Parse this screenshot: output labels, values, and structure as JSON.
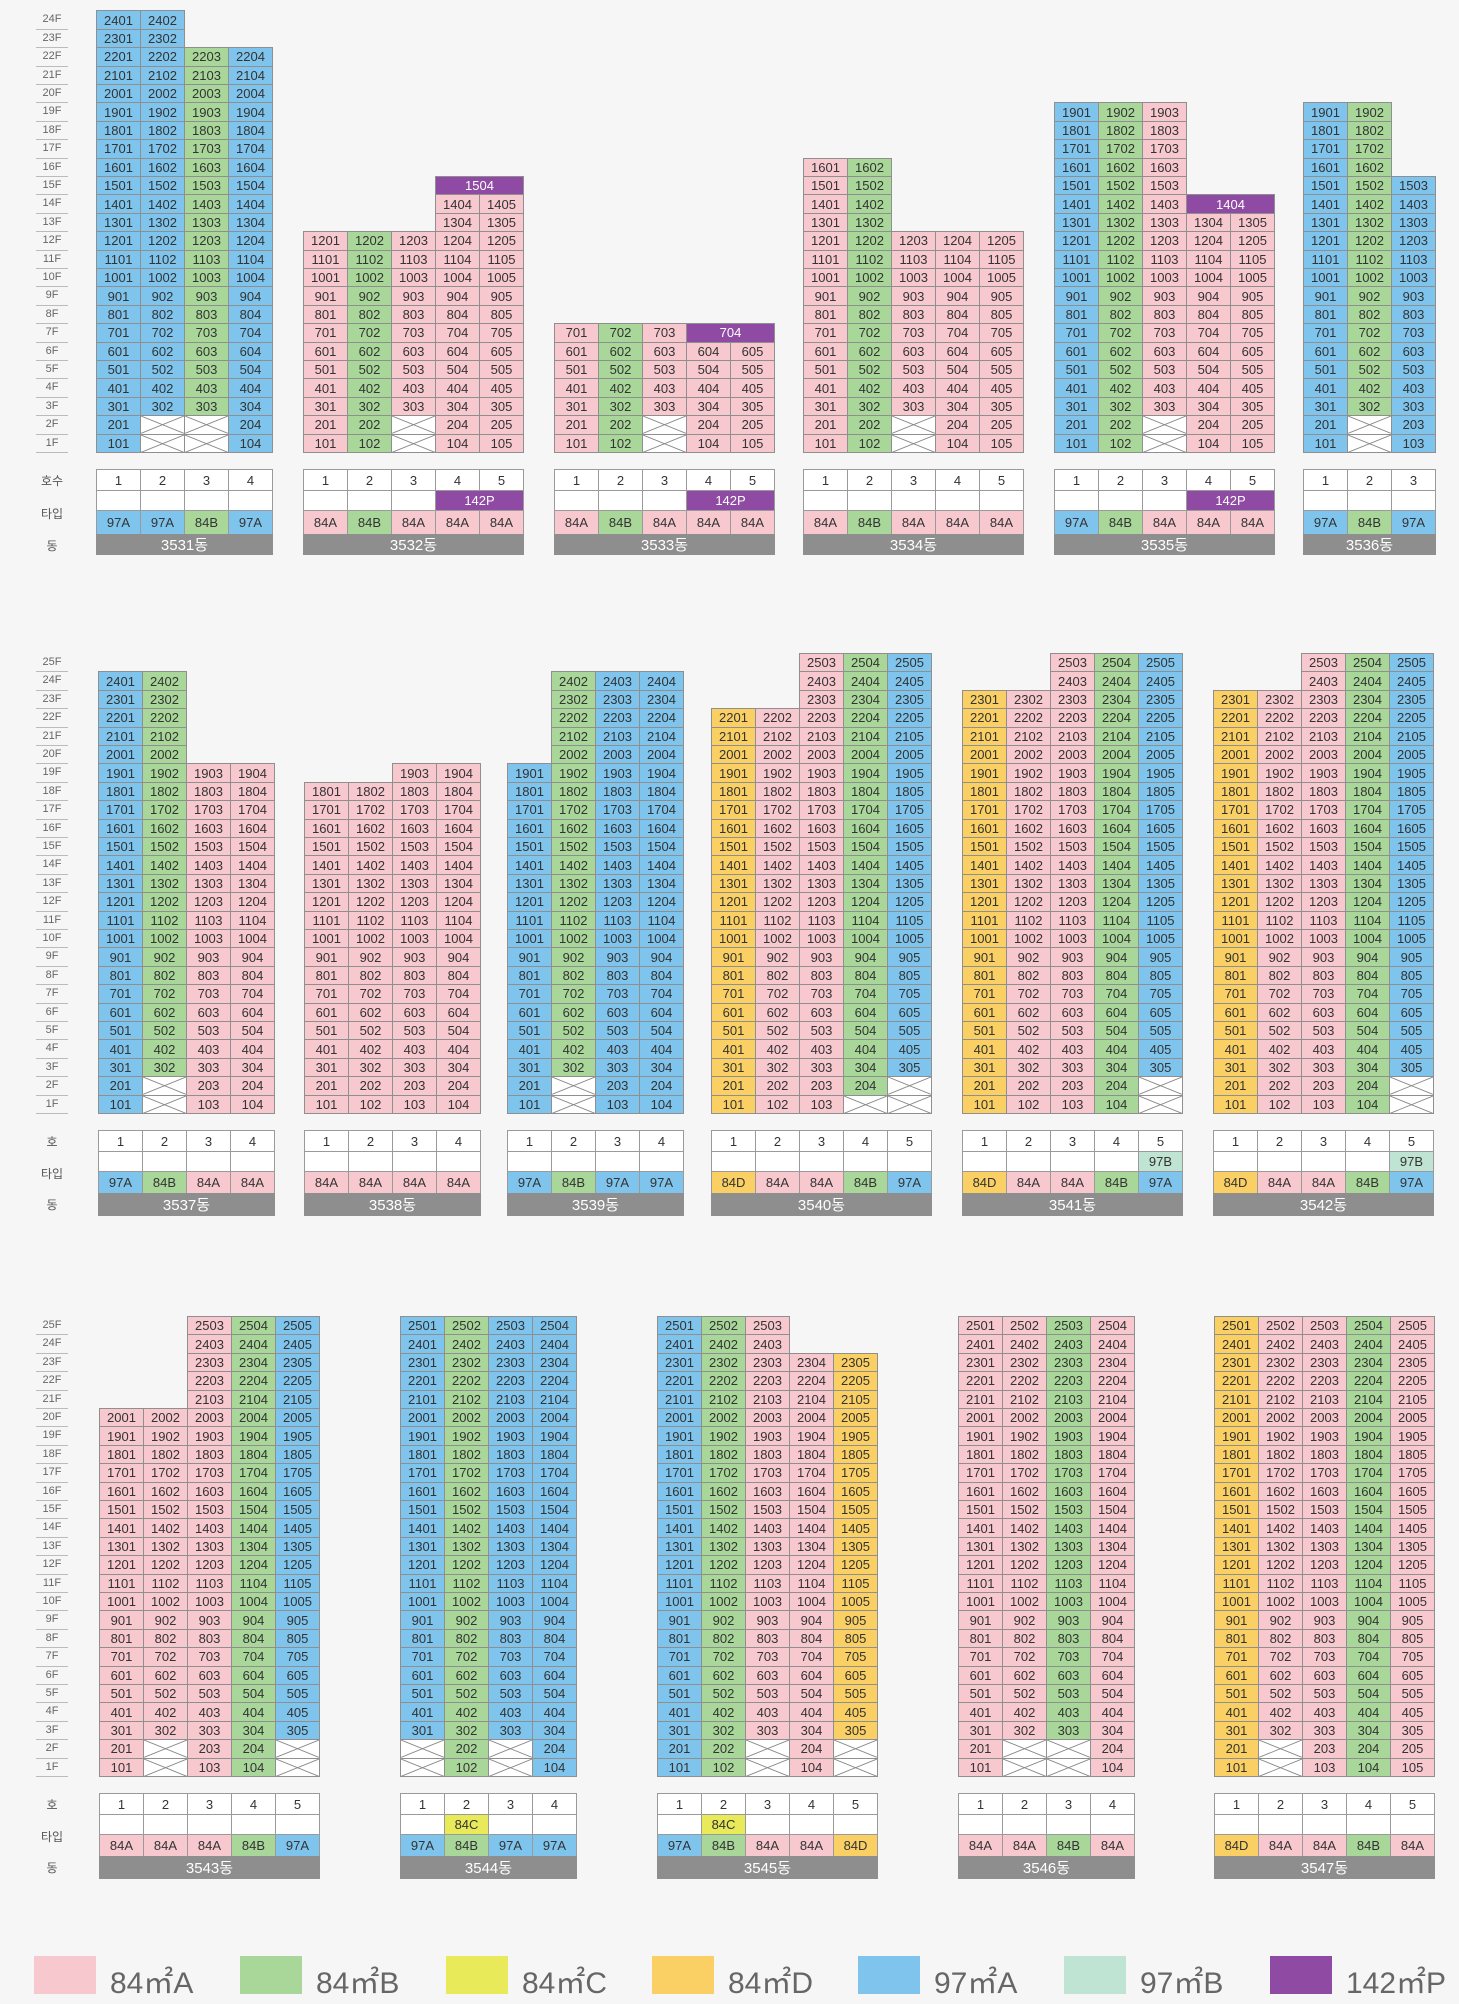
{
  "colors": {
    "84A": "#f8c8cf",
    "84B": "#a9d79a",
    "84C": "#e9ea5a",
    "84D": "#fad064",
    "97A": "#7fc4ec",
    "97B": "#bfe4d4",
    "142P": "#8f4aa3",
    "empty": "#ffffff"
  },
  "labels": {
    "unit_row_a": "호수",
    "unit_row_b": "호",
    "type_row": "타입",
    "dong_row": "동"
  },
  "legend": [
    {
      "key": "84A",
      "label": "84㎡A"
    },
    {
      "key": "84B",
      "label": "84㎡B"
    },
    {
      "key": "84C",
      "label": "84㎡C"
    },
    {
      "key": "84D",
      "label": "84㎡D"
    },
    {
      "key": "97A",
      "label": "97㎡A"
    },
    {
      "key": "97B",
      "label": "97㎡B"
    },
    {
      "key": "142P",
      "label": "142㎡P"
    }
  ],
  "buildings": [
    {
      "name": "3531동",
      "row": 0,
      "cols": [
        {
          "line": 1,
          "type": "97A",
          "top": 24,
          "empty": []
        },
        {
          "line": 2,
          "type": "97A",
          "top": 24,
          "empty": [
            1,
            2
          ]
        },
        {
          "line": 3,
          "type": "84B",
          "top": 22,
          "empty": [
            1,
            2
          ]
        },
        {
          "line": 4,
          "type": "97A",
          "top": 22,
          "empty": []
        }
      ],
      "penthouse": [],
      "extra_types": {}
    },
    {
      "name": "3532동",
      "row": 0,
      "cols": [
        {
          "line": 1,
          "type": "84A",
          "top": 12,
          "empty": []
        },
        {
          "line": 2,
          "type": "84B",
          "top": 12,
          "empty": []
        },
        {
          "line": 3,
          "type": "84A",
          "top": 12,
          "empty": [
            1,
            2
          ]
        },
        {
          "line": 4,
          "type": "84A",
          "top": 14,
          "empty": []
        },
        {
          "line": 5,
          "type": "84A",
          "top": 14,
          "empty": []
        }
      ],
      "penthouse": [
        {
          "label": "1504",
          "cols": [
            4,
            5
          ]
        }
      ],
      "extra_types": {
        "4": "142P",
        "5": "142P"
      }
    },
    {
      "name": "3533동",
      "row": 0,
      "cols": [
        {
          "line": 1,
          "type": "84A",
          "top": 7,
          "empty": []
        },
        {
          "line": 2,
          "type": "84B",
          "top": 7,
          "empty": []
        },
        {
          "line": 3,
          "type": "84A",
          "top": 7,
          "empty": [
            1,
            2
          ]
        },
        {
          "line": 4,
          "type": "84A",
          "top": 6,
          "empty": []
        },
        {
          "line": 5,
          "type": "84A",
          "top": 6,
          "empty": []
        }
      ],
      "penthouse": [
        {
          "label": "704",
          "cols": [
            4,
            5
          ]
        }
      ],
      "extra_types": {
        "4": "142P",
        "5": "142P"
      }
    },
    {
      "name": "3534동",
      "row": 0,
      "cols": [
        {
          "line": 1,
          "type": "84A",
          "top": 16,
          "empty": []
        },
        {
          "line": 2,
          "type": "84B",
          "top": 16,
          "empty": []
        },
        {
          "line": 3,
          "type": "84A",
          "top": 12,
          "empty": [
            1,
            2
          ]
        },
        {
          "line": 4,
          "type": "84A",
          "top": 12,
          "empty": []
        },
        {
          "line": 5,
          "type": "84A",
          "top": 12,
          "empty": []
        }
      ],
      "penthouse": [],
      "extra_types": {}
    },
    {
      "name": "3535동",
      "row": 0,
      "cols": [
        {
          "line": 1,
          "type": "97A",
          "top": 19,
          "empty": []
        },
        {
          "line": 2,
          "type": "84B",
          "top": 19,
          "empty": []
        },
        {
          "line": 3,
          "type": "84A",
          "top": 19,
          "empty": [
            1,
            2
          ]
        },
        {
          "line": 4,
          "type": "84A",
          "top": 13,
          "empty": []
        },
        {
          "line": 5,
          "type": "84A",
          "top": 13,
          "empty": []
        }
      ],
      "penthouse": [
        {
          "label": "1404",
          "cols": [
            4,
            5
          ]
        }
      ],
      "extra_types": {
        "4": "142P",
        "5": "142P"
      }
    },
    {
      "name": "3536동",
      "row": 0,
      "cols": [
        {
          "line": 1,
          "type": "97A",
          "top": 19,
          "empty": []
        },
        {
          "line": 2,
          "type": "84B",
          "top": 19,
          "empty": [
            1,
            2
          ]
        },
        {
          "line": 3,
          "type": "97A",
          "top": 15,
          "empty": []
        }
      ],
      "penthouse": [],
      "extra_types": {}
    },
    {
      "name": "3537동",
      "row": 1,
      "cols": [
        {
          "line": 1,
          "type": "97A",
          "top": 24,
          "empty": []
        },
        {
          "line": 2,
          "type": "84B",
          "top": 24,
          "empty": [
            1,
            2
          ]
        },
        {
          "line": 3,
          "type": "84A",
          "top": 19,
          "empty": []
        },
        {
          "line": 4,
          "type": "84A",
          "top": 19,
          "empty": []
        }
      ],
      "penthouse": [],
      "extra_types": {}
    },
    {
      "name": "3538동",
      "row": 1,
      "cols": [
        {
          "line": 1,
          "type": "84A",
          "top": 18,
          "empty": []
        },
        {
          "line": 2,
          "type": "84A",
          "top": 18,
          "empty": []
        },
        {
          "line": 3,
          "type": "84A",
          "top": 19,
          "empty": []
        },
        {
          "line": 4,
          "type": "84A",
          "top": 19,
          "empty": []
        }
      ],
      "penthouse": [],
      "extra_types": {}
    },
    {
      "name": "3539동",
      "row": 1,
      "cols": [
        {
          "line": 1,
          "type": "97A",
          "top": 19,
          "empty": []
        },
        {
          "line": 2,
          "type": "84B",
          "top": 24,
          "empty": [
            1,
            2
          ]
        },
        {
          "line": 3,
          "type": "97A",
          "top": 24,
          "empty": []
        },
        {
          "line": 4,
          "type": "97A",
          "top": 24,
          "empty": []
        }
      ],
      "penthouse": [],
      "extra_types": {}
    },
    {
      "name": "3540동",
      "row": 1,
      "cols": [
        {
          "line": 1,
          "type": "84D",
          "top": 22,
          "empty": []
        },
        {
          "line": 2,
          "type": "84A",
          "top": 22,
          "empty": []
        },
        {
          "line": 3,
          "type": "84A",
          "top": 25,
          "empty": []
        },
        {
          "line": 4,
          "type": "84B",
          "top": 25,
          "empty": [
            1
          ]
        },
        {
          "line": 5,
          "type": "97A",
          "top": 25,
          "empty": [
            1,
            2
          ]
        }
      ],
      "penthouse": [],
      "extra_types": {}
    },
    {
      "name": "3541동",
      "row": 1,
      "cols": [
        {
          "line": 1,
          "type": "84D",
          "top": 23,
          "empty": []
        },
        {
          "line": 2,
          "type": "84A",
          "top": 23,
          "empty": []
        },
        {
          "line": 3,
          "type": "84A",
          "top": 25,
          "empty": []
        },
        {
          "line": 4,
          "type": "84B",
          "top": 25,
          "empty": []
        },
        {
          "line": 5,
          "type": "97A",
          "top": 25,
          "empty": [
            1,
            2
          ]
        }
      ],
      "penthouse": [],
      "extra_types": {
        "5": "97B"
      }
    },
    {
      "name": "3542동",
      "row": 1,
      "cols": [
        {
          "line": 1,
          "type": "84D",
          "top": 23,
          "empty": []
        },
        {
          "line": 2,
          "type": "84A",
          "top": 23,
          "empty": []
        },
        {
          "line": 3,
          "type": "84A",
          "top": 25,
          "empty": []
        },
        {
          "line": 4,
          "type": "84B",
          "top": 25,
          "empty": []
        },
        {
          "line": 5,
          "type": "97A",
          "top": 25,
          "empty": [
            1,
            2
          ]
        }
      ],
      "penthouse": [],
      "extra_types": {
        "5": "97B"
      }
    },
    {
      "name": "3543동",
      "row": 2,
      "cols": [
        {
          "line": 1,
          "type": "84A",
          "top": 20,
          "empty": []
        },
        {
          "line": 2,
          "type": "84A",
          "top": 20,
          "empty": [
            1,
            2
          ]
        },
        {
          "line": 3,
          "type": "84A",
          "top": 25,
          "empty": []
        },
        {
          "line": 4,
          "type": "84B",
          "top": 25,
          "empty": []
        },
        {
          "line": 5,
          "type": "97A",
          "top": 25,
          "empty": [
            1,
            2
          ]
        }
      ],
      "penthouse": [],
      "extra_types": {}
    },
    {
      "name": "3544동",
      "row": 2,
      "cols": [
        {
          "line": 1,
          "type": "97A",
          "top": 25,
          "empty": [
            1,
            2
          ]
        },
        {
          "line": 2,
          "type": "84B",
          "top": 25,
          "empty": []
        },
        {
          "line": 3,
          "type": "97A",
          "top": 25,
          "empty": [
            1,
            2
          ]
        },
        {
          "line": 4,
          "type": "97A",
          "top": 25,
          "empty": []
        }
      ],
      "penthouse": [],
      "extra_types": {
        "2": "84C"
      }
    },
    {
      "name": "3545동",
      "row": 2,
      "cols": [
        {
          "line": 1,
          "type": "97A",
          "top": 25,
          "empty": []
        },
        {
          "line": 2,
          "type": "84B",
          "top": 25,
          "empty": []
        },
        {
          "line": 3,
          "type": "84A",
          "top": 25,
          "empty": [
            1,
            2
          ]
        },
        {
          "line": 4,
          "type": "84A",
          "top": 23,
          "empty": []
        },
        {
          "line": 5,
          "type": "84D",
          "top": 23,
          "empty": [
            1,
            2
          ]
        }
      ],
      "penthouse": [],
      "extra_types": {
        "2": "84C"
      }
    },
    {
      "name": "3546동",
      "row": 2,
      "cols": [
        {
          "line": 1,
          "type": "84A",
          "top": 25,
          "empty": []
        },
        {
          "line": 2,
          "type": "84A",
          "top": 25,
          "empty": [
            1,
            2
          ]
        },
        {
          "line": 3,
          "type": "84B",
          "top": 25,
          "empty": [
            1,
            2
          ]
        },
        {
          "line": 4,
          "type": "84A",
          "top": 25,
          "empty": []
        }
      ],
      "penthouse": [],
      "extra_types": {}
    },
    {
      "name": "3547동",
      "row": 2,
      "cols": [
        {
          "line": 1,
          "type": "84D",
          "top": 25,
          "empty": []
        },
        {
          "line": 2,
          "type": "84A",
          "top": 25,
          "empty": [
            1,
            2
          ]
        },
        {
          "line": 3,
          "type": "84A",
          "top": 25,
          "empty": []
        },
        {
          "line": 4,
          "type": "84B",
          "top": 25,
          "empty": []
        },
        {
          "line": 5,
          "type": "84A",
          "top": 25,
          "empty": []
        }
      ],
      "penthouse": [],
      "extra_types": {}
    }
  ]
}
